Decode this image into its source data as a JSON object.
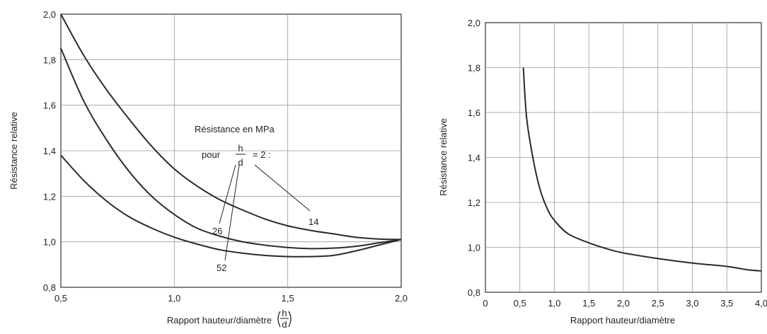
{
  "chart_data": [
    {
      "type": "line",
      "xlabel": "Rapport hauteur/diamètre",
      "xlabel_fraction": {
        "numerator": "h",
        "denominator": "d"
      },
      "ylabel": "Résistance relative",
      "xlim": [
        0.5,
        2.0
      ],
      "ylim": [
        0.8,
        2.0
      ],
      "x_ticks": [
        "0,5",
        "1,0",
        "1,5",
        "2,0"
      ],
      "y_ticks": [
        "0,8",
        "1,0",
        "1,2",
        "1,4",
        "1,6",
        "1,8",
        "2,0"
      ],
      "grid": true,
      "annotation": {
        "title": "Résistance en MPa",
        "prefix": "pour",
        "numerator": "h",
        "denominator": "d",
        "suffix": "= 2 :"
      },
      "series": [
        {
          "name": "14",
          "x": [
            0.5,
            0.6,
            0.7,
            0.8,
            0.9,
            1.0,
            1.1,
            1.2,
            1.3,
            1.4,
            1.5,
            1.6,
            1.7,
            1.8,
            1.9,
            2.0
          ],
          "y": [
            2.0,
            1.82,
            1.67,
            1.54,
            1.42,
            1.32,
            1.245,
            1.185,
            1.14,
            1.1,
            1.07,
            1.05,
            1.035,
            1.02,
            1.012,
            1.01
          ]
        },
        {
          "name": "26",
          "x": [
            0.5,
            0.6,
            0.7,
            0.8,
            0.9,
            1.0,
            1.1,
            1.2,
            1.3,
            1.4,
            1.5,
            1.6,
            1.7,
            1.8,
            1.9,
            2.0
          ],
          "y": [
            1.85,
            1.62,
            1.45,
            1.31,
            1.2,
            1.12,
            1.06,
            1.025,
            1.0,
            0.985,
            0.975,
            0.97,
            0.972,
            0.98,
            0.995,
            1.01
          ]
        },
        {
          "name": "52",
          "x": [
            0.5,
            0.6,
            0.7,
            0.8,
            0.9,
            1.0,
            1.1,
            1.2,
            1.3,
            1.4,
            1.5,
            1.6,
            1.7,
            1.8,
            1.9,
            2.0
          ],
          "y": [
            1.38,
            1.27,
            1.18,
            1.11,
            1.06,
            1.02,
            0.99,
            0.965,
            0.95,
            0.94,
            0.935,
            0.935,
            0.94,
            0.96,
            0.985,
            1.01
          ]
        }
      ]
    },
    {
      "type": "line",
      "xlabel": "Rapport hauteur/diamètre",
      "ylabel": "Résistance relative",
      "xlim": [
        0,
        4.0
      ],
      "ylim": [
        0.8,
        2.0
      ],
      "x_ticks": [
        "0",
        "0,5",
        "1,0",
        "1,5",
        "2,0",
        "2,5",
        "3,0",
        "3,5",
        "4,0"
      ],
      "y_ticks": [
        "0,8",
        "1,0",
        "1,2",
        "1,4",
        "1,6",
        "1,8",
        "2,0"
      ],
      "grid": true,
      "series": [
        {
          "x": [
            0.55,
            0.6,
            0.7,
            0.8,
            0.9,
            1.0,
            1.2,
            1.5,
            1.8,
            2.0,
            2.5,
            3.0,
            3.5,
            3.8,
            4.0
          ],
          "y": [
            1.8,
            1.57,
            1.38,
            1.25,
            1.17,
            1.12,
            1.06,
            1.02,
            0.99,
            0.975,
            0.95,
            0.93,
            0.915,
            0.9,
            0.895
          ]
        }
      ]
    }
  ]
}
